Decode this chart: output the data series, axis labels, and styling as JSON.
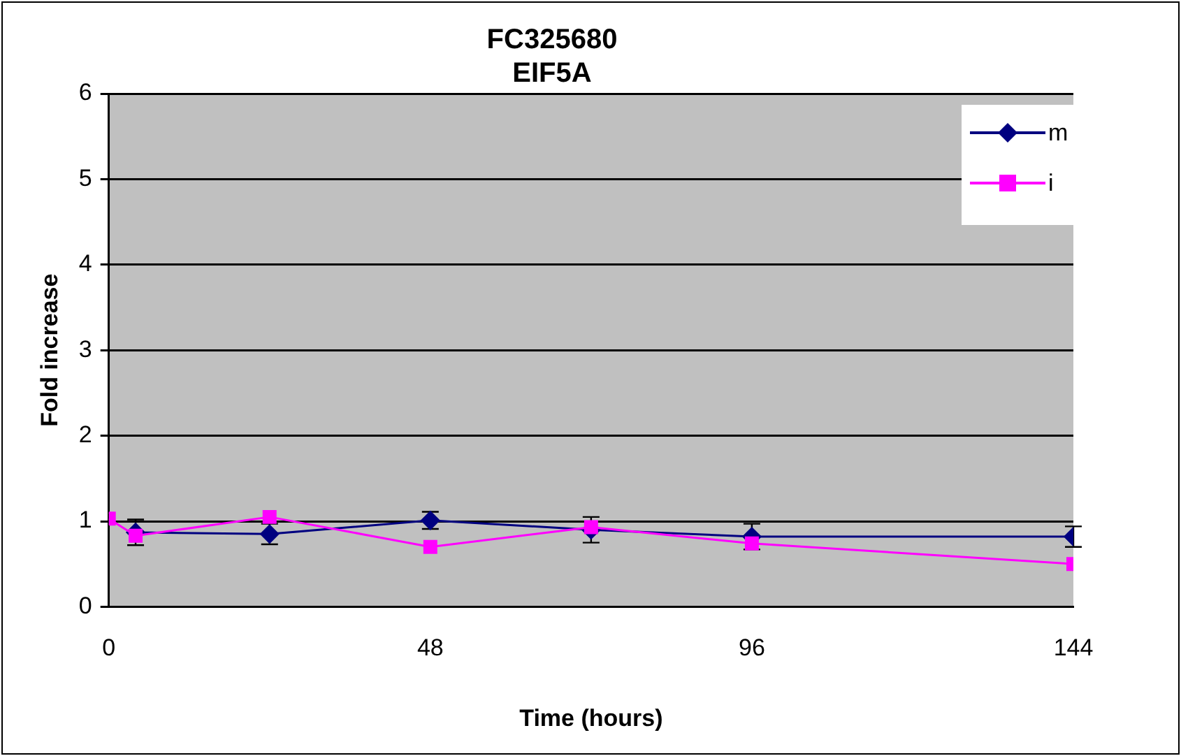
{
  "chart_data": {
    "type": "line",
    "title": "FC325680\nEIF5A",
    "xlabel": "Time (hours)",
    "ylabel": "Fold increase",
    "xlim": [
      0,
      144
    ],
    "xticks": [
      0,
      48,
      96,
      144
    ],
    "ylim": [
      0,
      6
    ],
    "yticks": [
      0,
      1,
      2,
      3,
      4,
      5,
      6
    ],
    "grid": "y",
    "legend": "top right",
    "series": [
      {
        "name": "m",
        "color": "#000080",
        "marker": "diamond",
        "x": [
          4,
          24,
          48,
          72,
          96,
          144
        ],
        "values": [
          0.87,
          0.85,
          1.01,
          0.9,
          0.82,
          0.82
        ],
        "errors": [
          0.15,
          0.12,
          0.1,
          0.15,
          0.15,
          0.12
        ]
      },
      {
        "name": "i",
        "color": "#ff00ff",
        "marker": "square",
        "x": [
          0,
          4,
          24,
          48,
          72,
          96,
          144
        ],
        "values": [
          1.03,
          0.83,
          1.05,
          0.7,
          0.93,
          0.74,
          0.5
        ]
      }
    ]
  }
}
